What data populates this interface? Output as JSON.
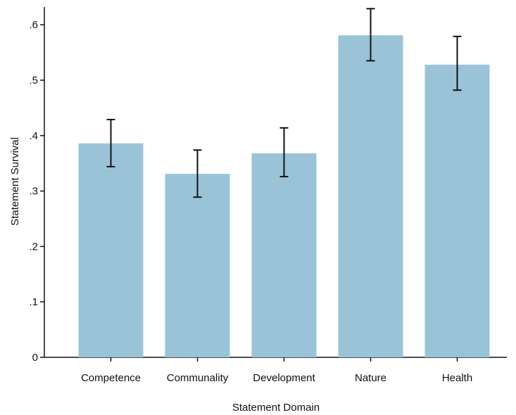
{
  "chart_data": {
    "type": "bar",
    "title": "",
    "xlabel": "Statement Domain",
    "ylabel": "Statement Survival",
    "categories": [
      "Competence",
      "Communality",
      "Development",
      "Nature",
      "Health"
    ],
    "values": [
      0.386,
      0.331,
      0.368,
      0.581,
      0.528
    ],
    "error_low": [
      0.344,
      0.289,
      0.326,
      0.535,
      0.482
    ],
    "error_high": [
      0.429,
      0.374,
      0.414,
      0.629,
      0.579
    ],
    "ylim": [
      0,
      0.63
    ],
    "yticks": [
      0,
      0.1,
      0.2,
      0.3,
      0.4,
      0.5,
      0.6
    ],
    "ytick_labels": [
      "0",
      ".1",
      ".2",
      ".3",
      ".4",
      ".5",
      ".6"
    ],
    "grid": false,
    "legend": "none",
    "colors": {
      "bar": "#9ac3d8",
      "error_bar": "#111111",
      "axis": "#111111"
    }
  }
}
